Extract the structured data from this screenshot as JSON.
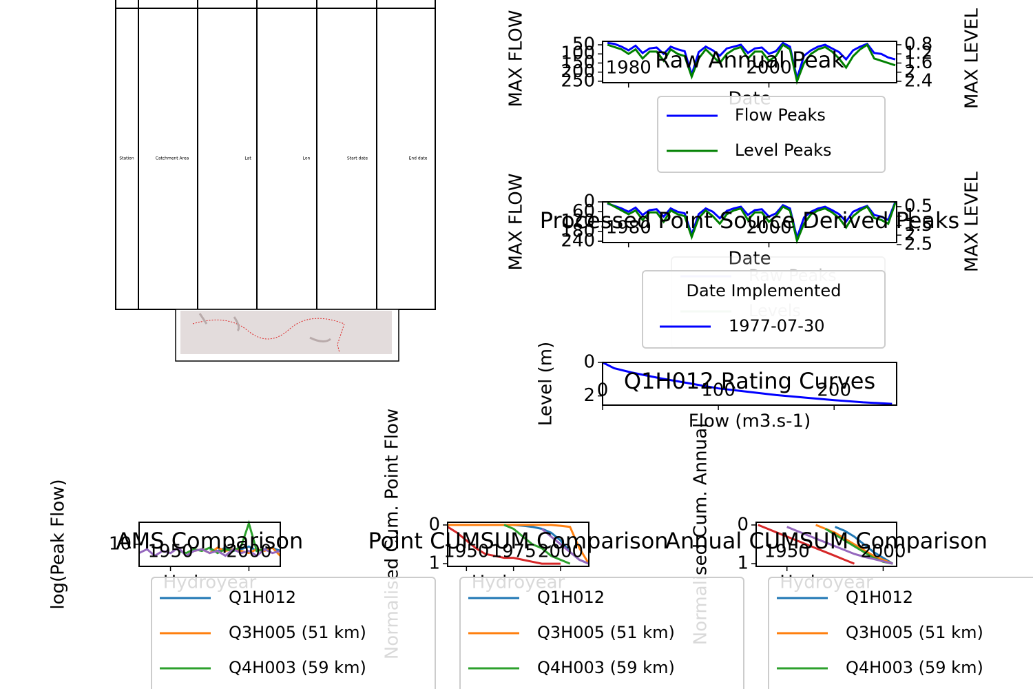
{
  "table": {
    "columns": [
      "Station",
      "Catchment Area",
      "Lat",
      "Lon",
      "Start date",
      "End date"
    ]
  },
  "chart_data": [
    {
      "type": "line",
      "title": "Raw Annual Peak",
      "xlabel": "Date",
      "ylabel": "MAX FLOW",
      "y2label": "MAX LEVEL",
      "x": [
        1977,
        1978,
        1979,
        1980,
        1981,
        1982,
        1983,
        1984,
        1985,
        1986,
        1987,
        1988,
        1989,
        1990,
        1991,
        1992,
        1993,
        1994,
        1995,
        1996,
        1997,
        1998,
        1999,
        2000,
        2001,
        2002,
        2003,
        2004,
        2005,
        2006,
        2007,
        2008,
        2009,
        2010,
        2011,
        2012,
        2013,
        2014,
        2015,
        2016,
        2017,
        2018
      ],
      "xlim": [
        1976.3,
        2018.2
      ],
      "xticks": [
        1980,
        2000
      ],
      "ylim": [
        258,
        31
      ],
      "yticks": [
        50,
        100,
        150,
        200,
        250
      ],
      "y2lim": [
        2.46,
        0.65
      ],
      "y2ticks": [
        0.8,
        1.2,
        1.6,
        2.0,
        2.4
      ],
      "series": [
        {
          "name": "Flow Peaks",
          "color": "blue",
          "values": [
            40,
            45,
            60,
            80,
            55,
            95,
            70,
            65,
            100,
            60,
            75,
            85,
            215,
            90,
            60,
            80,
            110,
            70,
            60,
            50,
            95,
            70,
            65,
            100,
            85,
            40,
            60,
            235,
            110,
            80,
            60,
            50,
            70,
            90,
            130,
            80,
            60,
            45,
            95,
            100,
            120,
            130
          ]
        },
        {
          "name": "Level Peaks",
          "color": "green",
          "axis": "y2",
          "values": [
            0.8,
            0.9,
            1.0,
            1.2,
            1.0,
            1.4,
            1.1,
            1.1,
            1.5,
            1.0,
            1.2,
            1.3,
            2.2,
            1.4,
            1.0,
            1.3,
            1.6,
            1.2,
            1.0,
            0.9,
            1.4,
            1.1,
            1.1,
            1.5,
            1.3,
            0.8,
            1.0,
            2.4,
            1.6,
            1.2,
            1.0,
            0.9,
            1.1,
            1.4,
            1.8,
            1.3,
            1.0,
            0.8,
            1.4,
            1.5,
            1.6,
            1.7
          ]
        }
      ]
    },
    {
      "type": "line",
      "title": "Processed Point Source Derived Peaks",
      "xlabel": "Date",
      "ylabel": "MAX FLOW",
      "y2label": "MAX LEVEL",
      "x": [
        1977,
        1978,
        1979,
        1980,
        1981,
        1982,
        1983,
        1984,
        1985,
        1986,
        1987,
        1988,
        1989,
        1990,
        1991,
        1992,
        1993,
        1994,
        1995,
        1996,
        1997,
        1998,
        1999,
        2000,
        2001,
        2002,
        2003,
        2004,
        2005,
        2006,
        2007,
        2008,
        2009,
        2010,
        2011,
        2012,
        2013,
        2014,
        2015,
        2016,
        2017,
        2018
      ],
      "xlim": [
        1976.3,
        2018.2
      ],
      "xticks": [
        1980,
        2000
      ],
      "ylim": [
        248,
        0
      ],
      "yticks": [
        0,
        60,
        120,
        180,
        240
      ],
      "y2lim": [
        2.39,
        0.25
      ],
      "y2ticks": [
        0.5,
        1.0,
        1.5,
        2.0,
        2.5
      ],
      "series": [
        {
          "name": "Raw Peaks",
          "color": "blue",
          "values": [
            10,
            25,
            40,
            60,
            35,
            80,
            50,
            45,
            90,
            40,
            60,
            70,
            200,
            75,
            40,
            60,
            100,
            55,
            40,
            30,
            80,
            50,
            45,
            90,
            70,
            20,
            40,
            220,
            95,
            60,
            40,
            30,
            50,
            75,
            120,
            60,
            40,
            25,
            80,
            90,
            110,
            0
          ]
        },
        {
          "name": "Levels",
          "color": "green",
          "axis": "y2",
          "values": [
            0.3,
            0.5,
            0.7,
            0.9,
            0.7,
            1.2,
            0.8,
            0.8,
            1.3,
            0.7,
            0.9,
            1.0,
            2.1,
            1.1,
            0.7,
            1.0,
            1.4,
            0.9,
            0.7,
            0.6,
            1.2,
            0.8,
            0.8,
            1.3,
            1.0,
            0.5,
            0.7,
            2.3,
            1.4,
            0.9,
            0.7,
            0.6,
            0.8,
            1.1,
            1.6,
            1.0,
            0.7,
            0.5,
            1.1,
            1.2,
            1.4,
            0.3
          ]
        }
      ],
      "implemented": {
        "title": "Date Implemented",
        "label": "1977-07-30",
        "color": "blue"
      }
    },
    {
      "type": "line",
      "title": "Q1H012 Rating Curves",
      "xlabel": "Flow (m3.s-1)",
      "ylabel": "Level (m)",
      "x": [
        0,
        10,
        25,
        50,
        75,
        100,
        125,
        150,
        175,
        200,
        225,
        250
      ],
      "xlim": [
        0,
        254
      ],
      "xticks": [
        0,
        100,
        200
      ],
      "ylim": [
        2.55,
        0
      ],
      "yticks": [
        0,
        2
      ],
      "series": [
        {
          "color": "blue",
          "values": [
            0,
            0.35,
            0.6,
            0.95,
            1.25,
            1.55,
            1.75,
            1.95,
            2.1,
            2.25,
            2.38,
            2.47
          ]
        }
      ]
    },
    {
      "type": "line",
      "title": "AMS Comparison",
      "xlabel": "Hydroyear",
      "ylabel": "log(Peak Flow)",
      "log_y": true,
      "x": [
        1930,
        1935,
        1940,
        1945,
        1950,
        1955,
        1960,
        1965,
        1970,
        1975,
        1980,
        1985,
        1990,
        1995,
        2000,
        2005,
        2010,
        2015,
        2020
      ],
      "xlim": [
        1930,
        2020
      ],
      "xticks": [
        1950,
        2000
      ],
      "ylim": [
        1,
        100
      ],
      "yticks": [
        10
      ],
      "series": [
        {
          "name": "Q1H012",
          "color": "#1f77b4",
          "values": [
            null,
            null,
            null,
            null,
            null,
            null,
            null,
            null,
            null,
            6,
            5,
            7,
            5,
            6,
            8,
            5,
            6,
            7,
            5
          ]
        },
        {
          "name": "Q3H005 (51 km)",
          "color": "#ff7f0e",
          "values": [
            null,
            null,
            null,
            null,
            null,
            null,
            null,
            5,
            6,
            4,
            7,
            5,
            6,
            5,
            4,
            6,
            5,
            7,
            3
          ]
        },
        {
          "name": "Q4H003 (59 km)",
          "color": "#2ca02c",
          "values": [
            null,
            null,
            null,
            null,
            null,
            5,
            4,
            6,
            5,
            7,
            4,
            6,
            5,
            8,
            90,
            5,
            6,
            null,
            null
          ]
        },
        {
          "color": "#9467bd",
          "values": [
            4,
            6,
            3,
            5,
            4,
            7,
            3,
            5,
            6,
            4,
            5,
            3,
            6,
            4,
            5,
            3,
            6,
            4,
            5
          ]
        }
      ]
    },
    {
      "type": "line",
      "title": "Point CUMSUM Comparison",
      "xlabel": "Hydroyear",
      "ylabel": "Normalised Cum. Point Flow",
      "x": [
        1940,
        1945,
        1950,
        1955,
        1960,
        1965,
        1970,
        1975,
        1980,
        1985,
        1990,
        1995,
        2000,
        2005,
        2010,
        2015
      ],
      "xlim": [
        1940,
        2015
      ],
      "xticks": [
        1950,
        1975,
        2000
      ],
      "ylim": [
        1.07,
        -0.07
      ],
      "yticks": [
        0,
        1
      ],
      "series": [
        {
          "name": "Q1H012",
          "color": "#1f77b4",
          "values": [
            null,
            null,
            null,
            null,
            null,
            null,
            null,
            0,
            0.02,
            0.05,
            0.1,
            0.2,
            0.4,
            0.7,
            0.9,
            1.0
          ]
        },
        {
          "name": "Q3H005 (51 km)",
          "color": "#ff7f0e",
          "values": [
            0,
            0,
            0,
            0,
            0,
            0,
            0,
            0,
            0,
            0,
            0,
            0,
            0.02,
            0.05,
            0.6,
            1.0
          ]
        },
        {
          "name": "Q4H003 (59 km)",
          "color": "#2ca02c",
          "values": [
            null,
            null,
            null,
            null,
            null,
            null,
            0,
            0.1,
            0.3,
            0.5,
            0.6,
            0.8,
            0.9,
            1.0,
            null,
            null
          ]
        },
        {
          "color": "#d62728",
          "values": [
            0.05,
            0.2,
            0.4,
            0.6,
            0.75,
            0.8,
            0.85,
            0.85,
            0.9,
            0.95,
            1.0,
            1.0,
            1.0,
            null,
            null,
            null
          ]
        },
        {
          "color": "#9467bd",
          "values": [
            null,
            null,
            null,
            null,
            null,
            null,
            null,
            null,
            null,
            null,
            0.1,
            0.3,
            0.5,
            0.7,
            0.9,
            1.0
          ]
        }
      ]
    },
    {
      "type": "line",
      "title": "Annual CUMSUM Comparison",
      "xlabel": "Hydroyear",
      "ylabel": "Normalised Cum. Annual",
      "x": [
        1935,
        1940,
        1945,
        1950,
        1955,
        1960,
        1965,
        1970,
        1975,
        1980,
        1985,
        1990,
        1995,
        2000,
        2005
      ],
      "xlim": [
        1934,
        2007
      ],
      "xticks": [
        1950,
        2000
      ],
      "ylim": [
        1.07,
        -0.07
      ],
      "yticks": [
        0,
        1
      ],
      "series": [
        {
          "name": "Q1H012",
          "color": "#1f77b4",
          "values": [
            null,
            null,
            null,
            null,
            null,
            null,
            null,
            null,
            0.05,
            0.15,
            0.3,
            0.5,
            0.7,
            0.85,
            1.0
          ]
        },
        {
          "name": "Q3H005 (51 km)",
          "color": "#ff7f0e",
          "values": [
            null,
            null,
            null,
            null,
            null,
            null,
            0,
            0.1,
            0.2,
            0.35,
            0.5,
            0.65,
            0.8,
            0.9,
            1.0
          ]
        },
        {
          "name": "Q4H003 (59 km)",
          "color": "#2ca02c",
          "values": [
            null,
            null,
            null,
            null,
            null,
            null,
            null,
            0.1,
            0.25,
            0.4,
            0.55,
            0.7,
            0.85,
            0.95,
            1.0
          ]
        },
        {
          "color": "#d62728",
          "values": [
            0,
            0.1,
            0.2,
            0.3,
            0.4,
            0.5,
            0.6,
            0.7,
            0.8,
            0.9,
            1.0,
            null,
            null,
            null,
            null
          ]
        },
        {
          "color": "#9467bd",
          "values": [
            null,
            null,
            null,
            0.05,
            0.15,
            0.25,
            0.35,
            0.45,
            0.55,
            0.65,
            0.75,
            0.82,
            0.88,
            0.94,
            1.0
          ]
        }
      ]
    }
  ]
}
